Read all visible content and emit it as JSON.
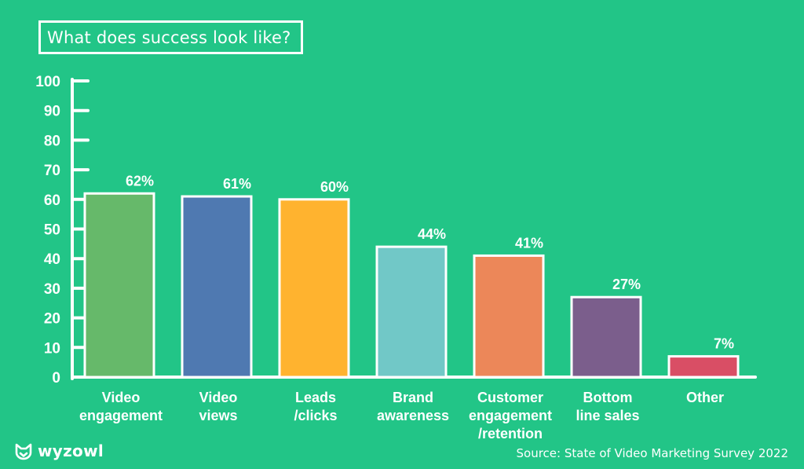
{
  "brand": {
    "name": "wyzowl",
    "logo_icon": "wyzowl-owl-logo",
    "background_color": "#22c587"
  },
  "source_note": "Source: State of Video Marketing Survey 2022",
  "chart_data": {
    "type": "bar",
    "title": "What does success look like?",
    "xlabel": "",
    "ylabel": "",
    "ylim": [
      0,
      100
    ],
    "yticks": [
      "0",
      "10",
      "20",
      "30",
      "40",
      "50",
      "60",
      "70",
      "80",
      "90",
      "100"
    ],
    "grid": false,
    "categories": [
      [
        "Video",
        "engagement"
      ],
      [
        "Video",
        "views"
      ],
      [
        "Leads",
        "/clicks"
      ],
      [
        "Brand",
        "awareness"
      ],
      [
        "Customer",
        "engagement",
        "/retention"
      ],
      [
        "Bottom",
        "line sales"
      ],
      [
        "Other"
      ]
    ],
    "values": [
      62,
      61,
      60,
      44,
      41,
      27,
      7
    ],
    "value_labels": [
      "62%",
      "61%",
      "60%",
      "44%",
      "41%",
      "27%",
      "7%"
    ],
    "colors": [
      "#66b96a",
      "#4f79b1",
      "#ffb32f",
      "#71c8c7",
      "#ec8759",
      "#7b5e8c",
      "#d94e65"
    ]
  }
}
